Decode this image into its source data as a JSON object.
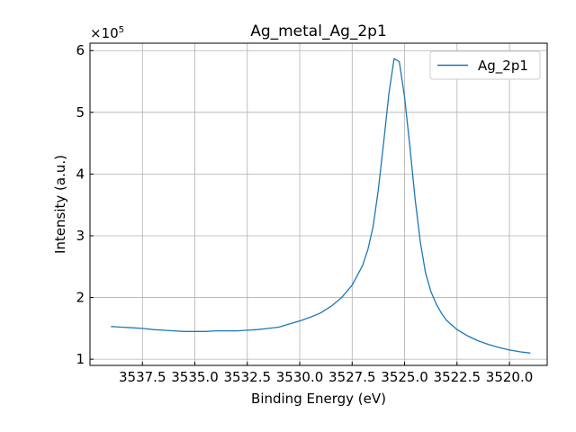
{
  "chart_data": {
    "type": "line",
    "title": "Ag_metal_Ag_2p1",
    "xlabel": "Binding Energy (eV)",
    "ylabel": "Intensity (a.u.)",
    "y_offset_text": "×10",
    "y_offset_exponent": "5",
    "x_reversed": true,
    "xlim": [
      3540.0,
      3518.2
    ],
    "ylim": [
      0.9,
      6.12
    ],
    "y_scale_multiplier": 100000,
    "grid": true,
    "legend_position": "upper right",
    "x_ticks": [
      3537.5,
      3535.0,
      3532.5,
      3530.0,
      3527.5,
      3525.0,
      3522.5,
      3520.0
    ],
    "x_tick_labels": [
      "3537.5",
      "3535.0",
      "3532.5",
      "3530.0",
      "3527.5",
      "3525.0",
      "3522.5",
      "3520.0"
    ],
    "y_ticks": [
      1,
      2,
      3,
      4,
      5,
      6
    ],
    "y_tick_labels": [
      "1",
      "2",
      "3",
      "4",
      "5",
      "6"
    ],
    "series": [
      {
        "name": "Ag_2p1",
        "color": "#1f77b4",
        "x": [
          3539.0,
          3538.5,
          3538.0,
          3537.5,
          3537.0,
          3536.5,
          3536.0,
          3535.5,
          3535.0,
          3534.5,
          3534.0,
          3533.5,
          3533.0,
          3532.5,
          3532.0,
          3531.5,
          3531.0,
          3530.5,
          3530.0,
          3529.5,
          3529.0,
          3528.5,
          3528.0,
          3527.5,
          3527.0,
          3526.75,
          3526.5,
          3526.25,
          3526.0,
          3525.75,
          3525.5,
          3525.25,
          3525.0,
          3524.75,
          3524.5,
          3524.25,
          3524.0,
          3523.75,
          3523.5,
          3523.25,
          3523.0,
          3522.5,
          3522.0,
          3521.5,
          3521.0,
          3520.5,
          3520.0,
          3519.5,
          3519.0
        ],
        "y": [
          1.53,
          1.52,
          1.51,
          1.5,
          1.48,
          1.47,
          1.46,
          1.45,
          1.45,
          1.45,
          1.46,
          1.46,
          1.46,
          1.47,
          1.48,
          1.5,
          1.52,
          1.57,
          1.62,
          1.68,
          1.75,
          1.86,
          2.0,
          2.2,
          2.52,
          2.78,
          3.15,
          3.75,
          4.5,
          5.3,
          5.87,
          5.82,
          5.25,
          4.45,
          3.6,
          2.9,
          2.4,
          2.1,
          1.9,
          1.75,
          1.63,
          1.48,
          1.38,
          1.3,
          1.24,
          1.19,
          1.15,
          1.12,
          1.1
        ]
      }
    ]
  }
}
